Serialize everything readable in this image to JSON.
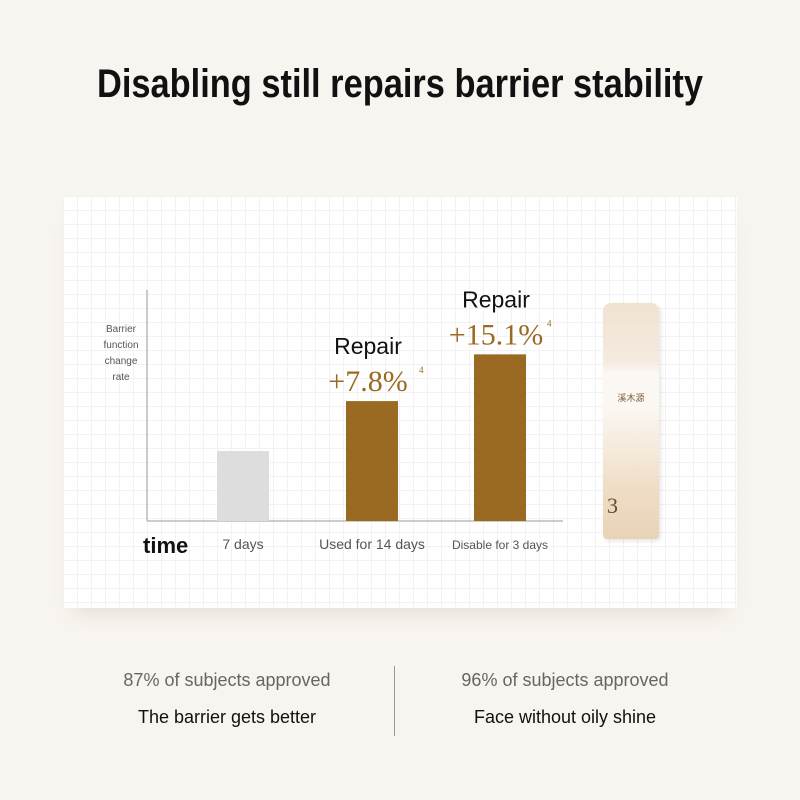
{
  "title": "Disabling still repairs barrier stability",
  "chart_data": {
    "type": "bar",
    "ylabel": [
      "Barrier",
      "function",
      "change",
      "rate"
    ],
    "xlabel": "time",
    "categories": [
      "7 days",
      "Used for 14 days",
      "Disable for 3 days"
    ],
    "values": [
      0,
      7.8,
      15.1
    ],
    "annotations": [
      null,
      {
        "heading": "Repair",
        "value": "+7.8%",
        "footnote": "4"
      },
      {
        "heading": "Repair",
        "value": "+15.1%",
        "footnote": "4"
      }
    ],
    "colors": [
      "#dddddd",
      "#9a6a22",
      "#9a6a22"
    ],
    "label_color": "#9a6a22",
    "grid": false
  },
  "product": {
    "brand": "溪木源",
    "number": "3"
  },
  "stats": [
    {
      "percent": "87% of subjects approved",
      "description": "The barrier gets better"
    },
    {
      "percent": "96% of subjects approved",
      "description": "Face without oily shine"
    }
  ]
}
